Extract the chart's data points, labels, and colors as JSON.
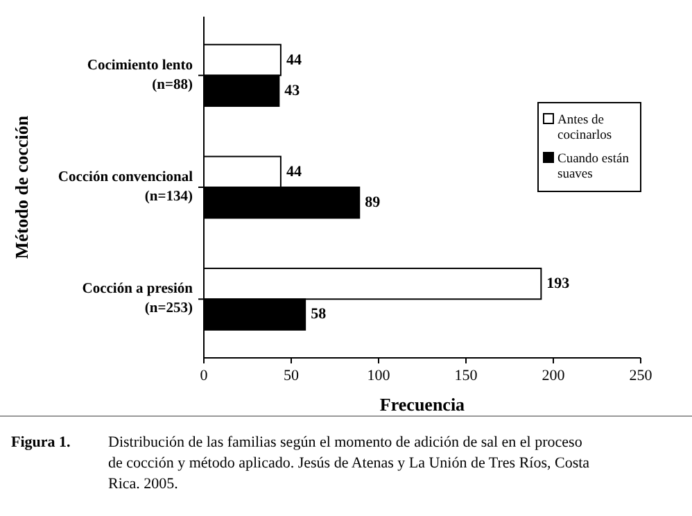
{
  "chart_data": {
    "type": "bar",
    "orientation": "horizontal",
    "categories": [
      "Cocimiento lento\n(n=88)",
      "Cocción convencional\n(n=134)",
      "Cocción a presión\n(n=253)"
    ],
    "series": [
      {
        "name": "Antes de cocinarlos",
        "color": "#ffffff",
        "values": [
          44,
          44,
          193
        ]
      },
      {
        "name": "Cuando están suaves",
        "color": "#000000",
        "values": [
          43,
          89,
          58
        ]
      }
    ],
    "xlim": [
      0,
      250
    ],
    "xticks": [
      0,
      50,
      100,
      150,
      200,
      250
    ],
    "xlabel": "Frecuencia",
    "ylabel": "Método de cocción",
    "data_labels": true,
    "legend": "right",
    "grid": false,
    "annotations": [
      "Figura 1.",
      "Distribución de las familias según el momento de adición de sal en el proceso de cocción y método aplicado.  Jesús de Atenas y La Unión de Tres Ríos, Costa Rica. 2005."
    ]
  }
}
